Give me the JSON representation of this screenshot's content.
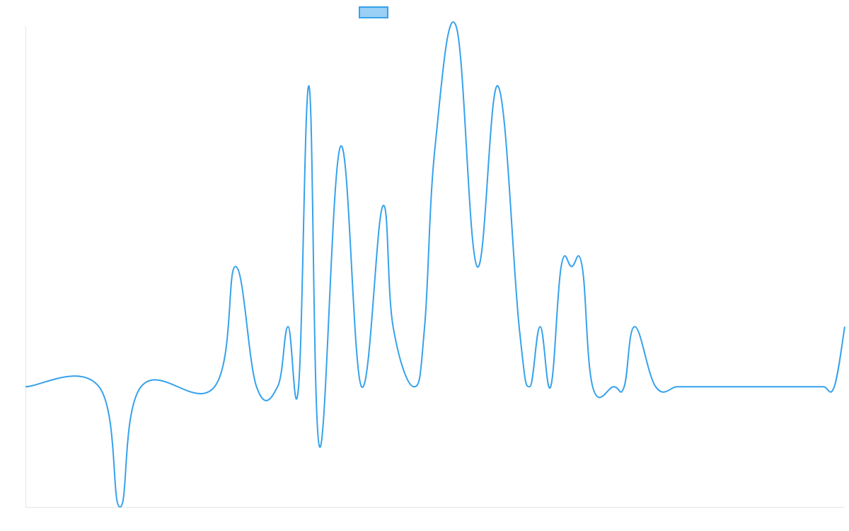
{
  "chart_data": {
    "type": "line",
    "title": "",
    "xlabel": "",
    "ylabel": "",
    "legend": {
      "position": "top-center",
      "swatch_fill": "#9ad0f5",
      "swatch_stroke": "#36a2eb"
    },
    "grid": false,
    "ylim": [
      -2,
      6
    ],
    "series": [
      {
        "color": "#36a2eb",
        "x": [
          0,
          7,
          9,
          11,
          18,
          20,
          22,
          24,
          25,
          26,
          27,
          28,
          30,
          32,
          34,
          35,
          37,
          38,
          39,
          41,
          43,
          45,
          47,
          48,
          49,
          50,
          51,
          52,
          53,
          54,
          56,
          57,
          58,
          60,
          62,
          63,
          64,
          65,
          66,
          68,
          70,
          71,
          72,
          73,
          74,
          75,
          76,
          77,
          78
        ],
        "y": [
          0,
          0,
          -2,
          0,
          0,
          2,
          0,
          0,
          1,
          0,
          5,
          -1,
          4,
          0,
          3,
          1,
          0,
          1,
          4,
          6,
          2,
          5,
          1,
          0,
          1,
          0,
          2,
          2,
          2,
          0,
          0,
          0,
          1,
          0,
          0,
          0,
          0,
          0,
          0,
          0,
          0,
          0,
          0,
          0,
          0,
          0,
          0,
          0,
          1
        ]
      }
    ]
  }
}
